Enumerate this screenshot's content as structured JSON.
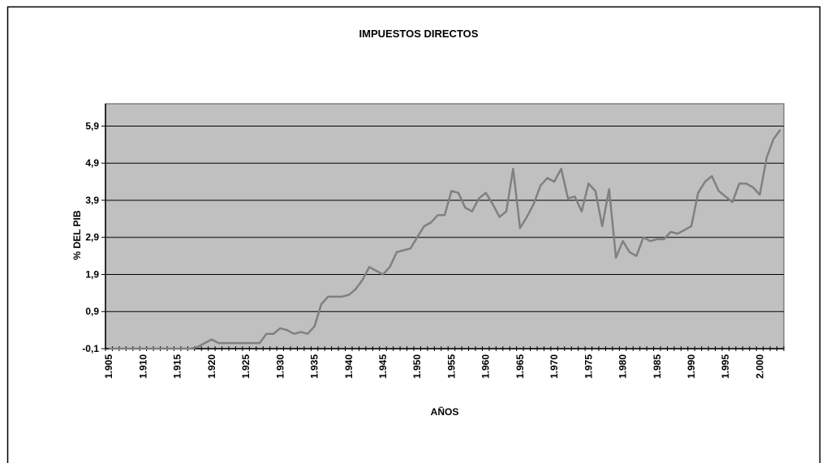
{
  "chart_data": {
    "type": "line",
    "title": "IMPUESTOS DIRECTOS",
    "x_label": "AÑOS",
    "y_label": "% DEL PIB",
    "categories": [
      "1.905",
      null,
      null,
      null,
      null,
      "1.910",
      null,
      null,
      null,
      null,
      "1.915",
      null,
      null,
      null,
      null,
      "1.920",
      null,
      null,
      null,
      null,
      "1.925",
      null,
      null,
      null,
      null,
      "1.930",
      null,
      null,
      null,
      null,
      "1.935",
      null,
      null,
      null,
      null,
      "1.940",
      null,
      null,
      null,
      null,
      "1.945",
      null,
      null,
      null,
      null,
      "1.950",
      null,
      null,
      null,
      null,
      "1.955",
      null,
      null,
      null,
      null,
      "1.960",
      null,
      null,
      null,
      null,
      "1.965",
      null,
      null,
      null,
      null,
      "1.970",
      null,
      null,
      null,
      null,
      "1.975",
      null,
      null,
      null,
      null,
      "1.980",
      null,
      null,
      null,
      null,
      "1.985",
      null,
      null,
      null,
      null,
      "1.990",
      null,
      null,
      null,
      null,
      "1.995",
      null,
      null,
      null,
      null,
      "2.000",
      null,
      null,
      null
    ],
    "series": [
      {
        "color": "#808080",
        "values": [
          -0.1,
          -0.1,
          -0.1,
          -0.1,
          -0.1,
          -0.1,
          -0.1,
          -0.1,
          -0.1,
          -0.1,
          -0.1,
          -0.1,
          -0.1,
          -0.05,
          0.05,
          0.15,
          0.05,
          0.05,
          0.05,
          0.05,
          0.05,
          0.05,
          0.05,
          0.3,
          0.3,
          0.45,
          0.4,
          0.3,
          0.35,
          0.3,
          0.5,
          1.1,
          1.3,
          1.3,
          1.3,
          1.35,
          1.5,
          1.75,
          2.1,
          2.0,
          1.9,
          2.1,
          2.5,
          2.55,
          2.6,
          2.9,
          3.2,
          3.3,
          3.5,
          3.5,
          4.15,
          4.1,
          3.7,
          3.6,
          3.95,
          4.1,
          3.8,
          3.45,
          3.6,
          4.75,
          3.15,
          3.45,
          3.8,
          4.3,
          4.5,
          4.4,
          4.75,
          3.95,
          4.0,
          3.6,
          4.35,
          4.15,
          3.2,
          4.2,
          2.35,
          2.8,
          2.5,
          2.4,
          2.9,
          2.8,
          2.85,
          2.85,
          3.05,
          3.0,
          3.1,
          3.2,
          4.1,
          4.4,
          4.55,
          4.15,
          4.0,
          3.85,
          4.35,
          4.35,
          4.25,
          4.05,
          5.05,
          5.55,
          5.8
        ]
      }
    ],
    "ylim": [
      -0.1,
      6.5
    ],
    "yticks": [
      {
        "value": -0.1,
        "label": "-0,1"
      },
      {
        "value": 0.9,
        "label": "0,9"
      },
      {
        "value": 1.9,
        "label": "1,9"
      },
      {
        "value": 2.9,
        "label": "2,9"
      },
      {
        "value": 3.9,
        "label": "3,9"
      },
      {
        "value": 4.9,
        "label": "4,9"
      },
      {
        "value": 5.9,
        "label": "5,9"
      }
    ],
    "grid": true,
    "plot_background": "#c0c0c0"
  }
}
